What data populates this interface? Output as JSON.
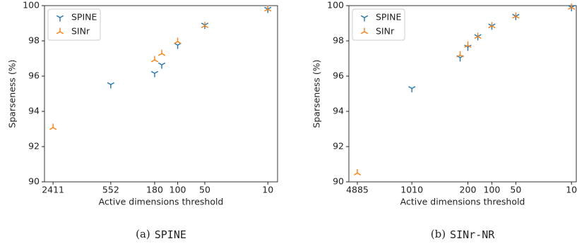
{
  "chart_data": [
    {
      "type": "scatter",
      "caption_tag": "(a)",
      "caption": "SPINE",
      "xlabel": "Active dimensions threshold",
      "ylabel": "Sparseness (%)",
      "xscale": "log",
      "xlim": [
        3000,
        7.8
      ],
      "ylim": [
        90,
        100
      ],
      "xticks": [
        2411,
        552,
        180,
        100,
        50,
        10
      ],
      "yticks": [
        90,
        92,
        94,
        96,
        98,
        100
      ],
      "legend": "upper left",
      "series": [
        {
          "name": "SPINE",
          "color": "#1f77b4",
          "marker": "tri_down",
          "x": [
            552,
            180,
            150,
            100,
            50,
            10
          ],
          "values": [
            95.52,
            96.16,
            96.64,
            97.76,
            98.9,
            99.8
          ]
        },
        {
          "name": "SINr",
          "color": "#ff7f0e",
          "marker": "tri_up",
          "x": [
            2411,
            180,
            150,
            100,
            50,
            10
          ],
          "values": [
            93.08,
            96.92,
            97.28,
            97.96,
            98.86,
            99.8
          ]
        }
      ]
    },
    {
      "type": "scatter",
      "caption_tag": "(b)",
      "caption": "SINr-NR",
      "xlabel": "Active dimensions threshold",
      "ylabel": "Sparseness (%)",
      "xscale": "log",
      "xlim": [
        6240,
        8.7
      ],
      "ylim": [
        90,
        100
      ],
      "xticks": [
        4885,
        1010,
        200,
        100,
        50,
        10
      ],
      "yticks": [
        90,
        92,
        94,
        96,
        98,
        100
      ],
      "legend": "upper left",
      "series": [
        {
          "name": "SPINE",
          "color": "#1f77b4",
          "marker": "tri_down",
          "x": [
            1010,
            250,
            200,
            150,
            100,
            50,
            10
          ],
          "values": [
            95.3,
            97.05,
            97.65,
            98.25,
            98.85,
            99.4,
            99.9
          ]
        },
        {
          "name": "SINr",
          "color": "#ff7f0e",
          "marker": "tri_up",
          "x": [
            4885,
            250,
            200,
            150,
            100,
            50,
            10
          ],
          "values": [
            90.5,
            97.2,
            97.75,
            98.25,
            98.85,
            99.4,
            99.9
          ]
        }
      ]
    }
  ]
}
